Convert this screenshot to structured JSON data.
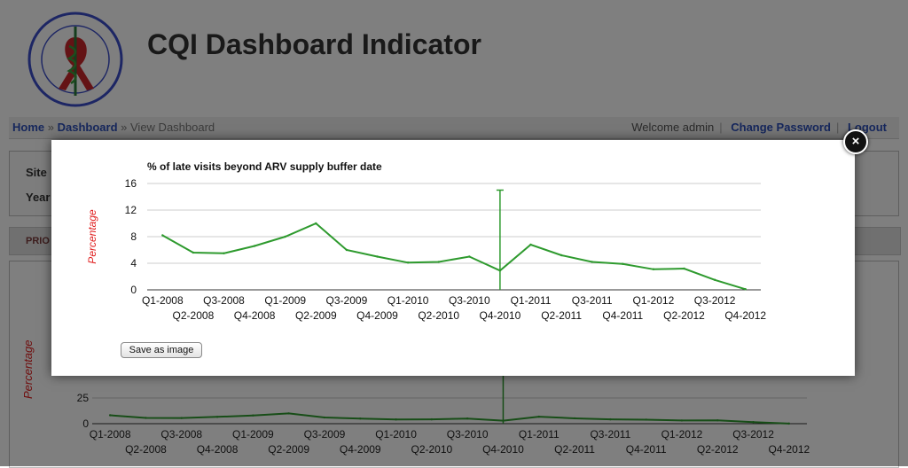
{
  "header": {
    "title": "CQI Dashboard Indicator"
  },
  "nav": {
    "breadcrumb": [
      "Home",
      "Dashboard",
      "View Dashboard"
    ],
    "separator": "»",
    "welcome": "Welcome admin",
    "change_password": "Change Password",
    "logout": "Logout"
  },
  "filters": {
    "site_label": "Site",
    "year_label": "Year"
  },
  "tab": {
    "label": "PRIO"
  },
  "modal": {
    "close_symbol": "×",
    "save_button": "Save as image"
  },
  "colors": {
    "series_line": "#2e9a2e",
    "ylabel": "#e02020",
    "link": "#2d4fb8"
  },
  "chart_data": [
    {
      "type": "line",
      "title": "% of late visits beyond ARV supply buffer date",
      "ylabel": "Percentage",
      "xlabel": "",
      "ylim": [
        0,
        16
      ],
      "yticks": [
        0,
        4,
        8,
        12,
        16
      ],
      "grid": true,
      "categories": [
        "Q1-2008",
        "Q2-2008",
        "Q3-2008",
        "Q4-2008",
        "Q1-2009",
        "Q2-2009",
        "Q3-2009",
        "Q4-2009",
        "Q1-2010",
        "Q2-2010",
        "Q3-2010",
        "Q4-2010",
        "Q1-2011",
        "Q2-2011",
        "Q3-2011",
        "Q4-2011",
        "Q1-2012",
        "Q2-2012",
        "Q3-2012",
        "Q4-2012"
      ],
      "series": [
        {
          "values": [
            8.2,
            5.6,
            5.5,
            6.6,
            8.0,
            10.0,
            6.0,
            5.0,
            4.1,
            4.2,
            5.0,
            2.9,
            6.8,
            5.2,
            4.2,
            3.9,
            3.1,
            3.2,
            1.5,
            0.1
          ]
        }
      ],
      "marker": {
        "category": "Q4-2010",
        "from": 2.9,
        "to": 15.0
      }
    },
    {
      "type": "line",
      "title": "",
      "ylabel": "Percentage",
      "xlabel": "",
      "yticks_visible": [
        0,
        25
      ],
      "categories": [
        "Q1-2008",
        "Q2-2008",
        "Q3-2008",
        "Q4-2008",
        "Q1-2009",
        "Q2-2009",
        "Q3-2009",
        "Q4-2009",
        "Q1-2010",
        "Q2-2010",
        "Q3-2010",
        "Q4-2010",
        "Q1-2011",
        "Q2-2011",
        "Q3-2011",
        "Q4-2011",
        "Q1-2012",
        "Q2-2012",
        "Q3-2012",
        "Q4-2012"
      ],
      "series": [
        {
          "values": [
            8.2,
            5.6,
            5.5,
            6.6,
            8.0,
            10.0,
            6.0,
            5.0,
            4.1,
            4.2,
            5.0,
            2.9,
            6.8,
            5.2,
            4.2,
            3.9,
            3.1,
            3.2,
            1.5,
            0.1
          ]
        }
      ]
    }
  ]
}
